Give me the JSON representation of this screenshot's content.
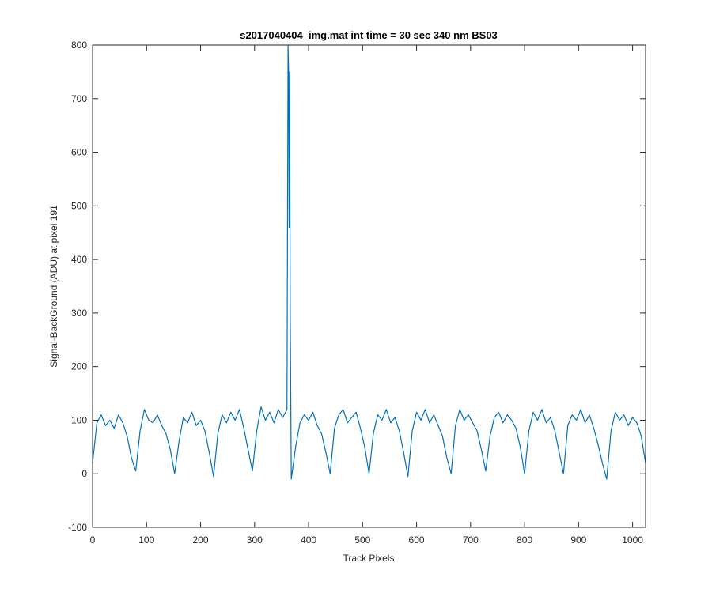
{
  "chart_data": {
    "type": "line",
    "title": "s2017040404_img.mat int time = 30 sec  340 nm BS03",
    "xlabel": "Track Pixels",
    "ylabel": "Signal-BackGround (ADU) at pixel 191",
    "xlim": [
      0,
      1024
    ],
    "ylim": [
      -100,
      800
    ],
    "xticks": [
      0,
      100,
      200,
      300,
      400,
      500,
      600,
      700,
      800,
      900,
      1000
    ],
    "yticks": [
      -100,
      0,
      100,
      200,
      300,
      400,
      500,
      600,
      700,
      800
    ],
    "grid": false,
    "series": [
      {
        "color": "#0072bd",
        "x": [
          0,
          8,
          16,
          24,
          32,
          40,
          48,
          56,
          64,
          72,
          80,
          88,
          96,
          104,
          112,
          120,
          128,
          136,
          144,
          152,
          160,
          168,
          176,
          184,
          192,
          200,
          208,
          216,
          224,
          232,
          240,
          248,
          256,
          264,
          272,
          280,
          288,
          296,
          304,
          312,
          320,
          328,
          336,
          344,
          352,
          360,
          362,
          363,
          364,
          365,
          366,
          368,
          376,
          384,
          392,
          400,
          408,
          416,
          424,
          432,
          440,
          448,
          456,
          464,
          472,
          480,
          488,
          496,
          504,
          512,
          520,
          528,
          536,
          544,
          552,
          560,
          568,
          576,
          584,
          592,
          600,
          608,
          616,
          624,
          632,
          640,
          648,
          656,
          664,
          672,
          680,
          688,
          696,
          704,
          712,
          720,
          728,
          736,
          744,
          752,
          760,
          768,
          776,
          784,
          792,
          800,
          808,
          816,
          824,
          832,
          840,
          848,
          856,
          864,
          872,
          880,
          888,
          896,
          904,
          912,
          920,
          928,
          936,
          944,
          952,
          960,
          968,
          976,
          984,
          992,
          1000,
          1008,
          1016,
          1024
        ],
        "values": [
          20,
          95,
          110,
          90,
          100,
          85,
          110,
          95,
          70,
          30,
          5,
          80,
          120,
          100,
          95,
          110,
          90,
          75,
          45,
          0,
          60,
          105,
          95,
          115,
          90,
          100,
          80,
          40,
          -5,
          75,
          110,
          95,
          115,
          100,
          120,
          85,
          45,
          5,
          80,
          125,
          100,
          115,
          95,
          120,
          105,
          120,
          800,
          750,
          460,
          750,
          300,
          -10,
          50,
          95,
          110,
          100,
          115,
          90,
          75,
          40,
          0,
          85,
          110,
          120,
          95,
          105,
          115,
          85,
          50,
          0,
          75,
          110,
          100,
          120,
          95,
          105,
          80,
          40,
          -5,
          80,
          115,
          100,
          120,
          95,
          110,
          90,
          70,
          30,
          0,
          90,
          120,
          100,
          110,
          95,
          80,
          45,
          5,
          70,
          105,
          115,
          95,
          110,
          100,
          85,
          50,
          0,
          80,
          115,
          100,
          120,
          95,
          105,
          80,
          40,
          0,
          90,
          110,
          100,
          120,
          95,
          110,
          85,
          55,
          20,
          -10,
          80,
          115,
          100,
          110,
          90,
          105,
          95,
          70,
          20
        ]
      }
    ]
  }
}
